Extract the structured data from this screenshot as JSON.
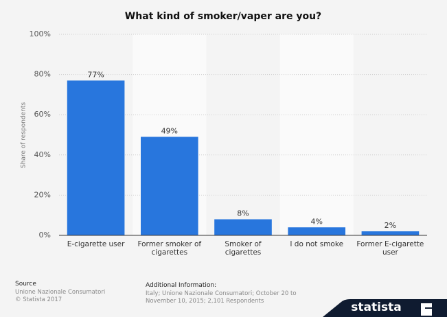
{
  "chart_data": {
    "type": "bar",
    "title": "What kind of smoker/vaper are you?",
    "y_label": "Share of respondents",
    "categories": [
      "E-cigarette user",
      "Former smoker of cigarettes",
      "Smoker of cigarettes",
      "I do not smoke",
      "Former E-cigarette user"
    ],
    "values": [
      77,
      49,
      8,
      4,
      2
    ],
    "value_labels": [
      "77%",
      "49%",
      "8%",
      "4%",
      "2%"
    ],
    "color": "#2876dd",
    "ylim": [
      0,
      100
    ],
    "yticks": [
      {
        "value": 0,
        "label": "0%"
      },
      {
        "value": 20,
        "label": "20%"
      },
      {
        "value": 40,
        "label": "40%"
      },
      {
        "value": 60,
        "label": "60%"
      },
      {
        "value": 80,
        "label": "80%"
      },
      {
        "value": 100,
        "label": "100%"
      }
    ],
    "grid": true
  },
  "footer": {
    "source_title": "Source",
    "source_lines": [
      "Unione Nazionale Consumatori",
      "© Statista 2017"
    ],
    "info_title": "Additional Information:",
    "info_text": "Italy; Unione Nazionale Consumatori; October 20 to November 10, 2015; 2,101 Respondents",
    "logo": "statista"
  }
}
